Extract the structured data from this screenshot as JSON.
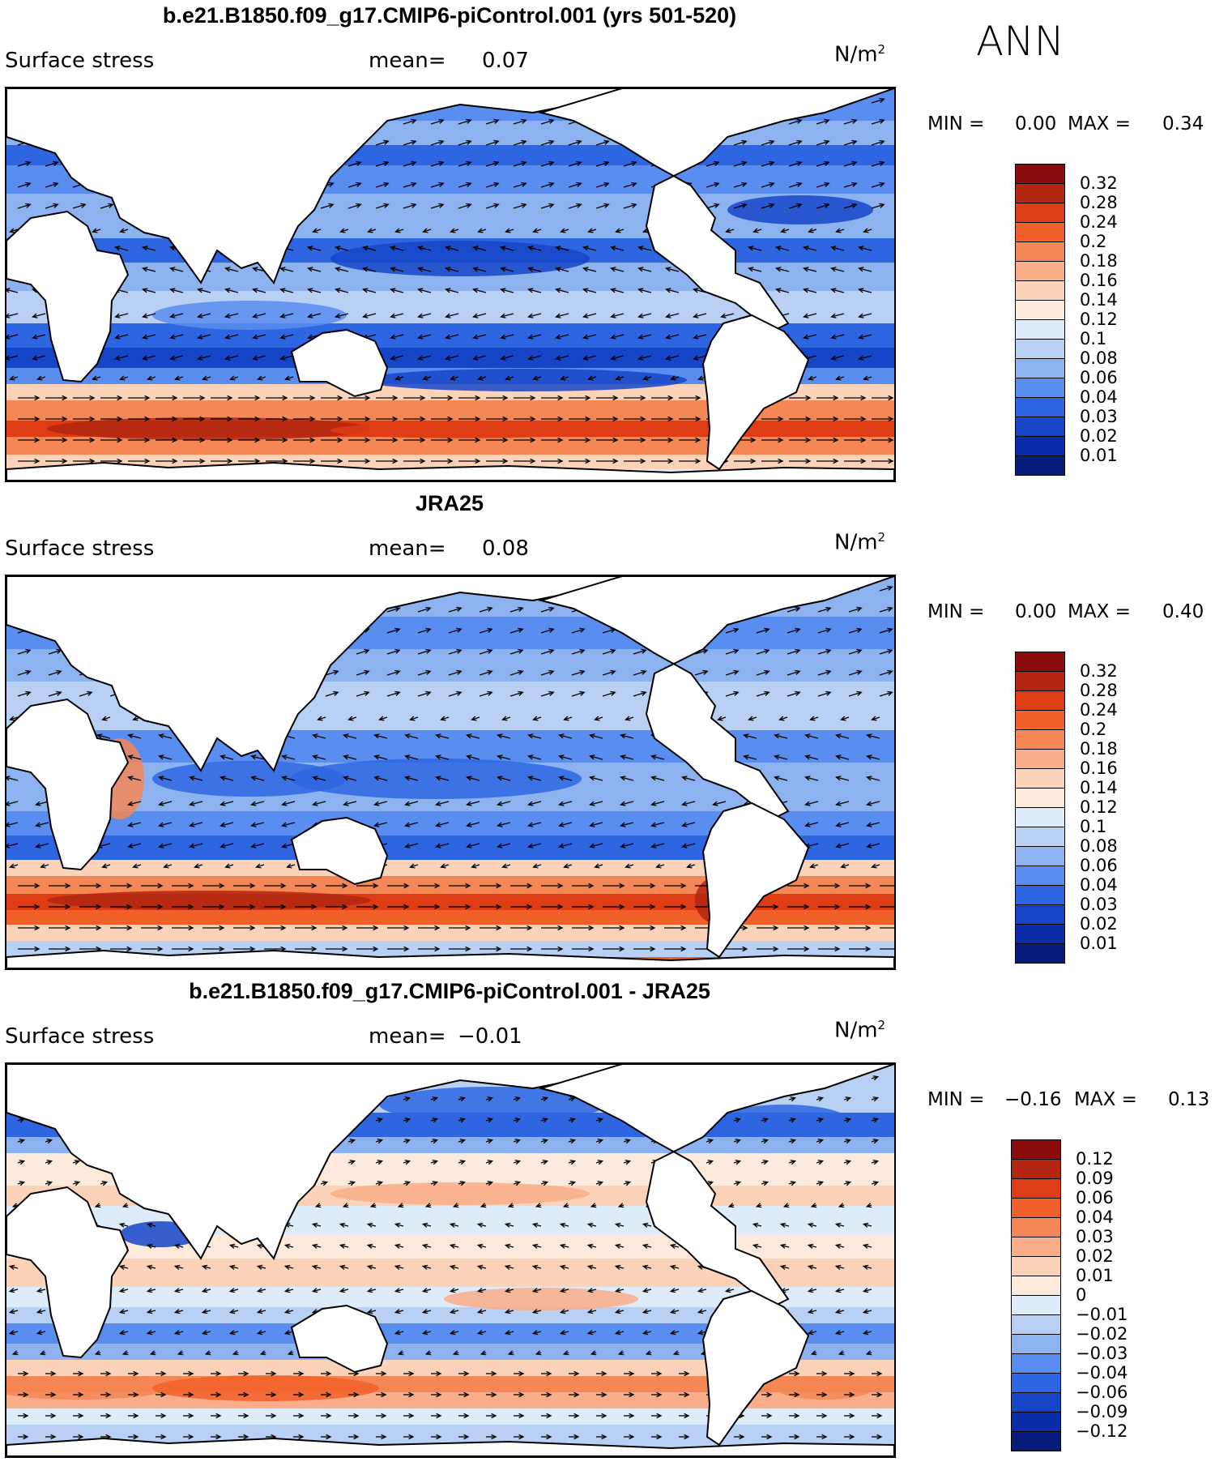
{
  "season": "ANN",
  "panels": [
    {
      "title": "b.e21.B1850.f09_g17.CMIP6-piControl.001 (yrs 501-520)",
      "variable": "Surface stress",
      "mean_label": "mean=",
      "mean_value": "0.07",
      "units": "N/m",
      "units_sup": "2",
      "min_label": "MIN =",
      "min_value": "0.00",
      "max_label": "MAX =",
      "max_value": "0.34",
      "colorbar_labels": [
        "0.32",
        "0.28",
        "0.24",
        "0.2",
        "0.18",
        "0.16",
        "0.14",
        "0.12",
        "0.1",
        "0.08",
        "0.06",
        "0.04",
        "0.03",
        "0.02",
        "0.01"
      ],
      "colorbar_colors": [
        "#8a0c0c",
        "#b22612",
        "#dd3c14",
        "#f2602a",
        "#f58655",
        "#f9ad88",
        "#fcd3b8",
        "#fdeadd",
        "#deebf9",
        "#b7d0f4",
        "#8cb2ef",
        "#5a8df0",
        "#2e66e2",
        "#1645c8",
        "#0a2ca6",
        "#071c7a"
      ]
    },
    {
      "title": "JRA25",
      "variable": "Surface stress",
      "mean_label": "mean=",
      "mean_value": "0.08",
      "units": "N/m",
      "units_sup": "2",
      "min_label": "MIN =",
      "min_value": "0.00",
      "max_label": "MAX =",
      "max_value": "0.40",
      "colorbar_labels": [
        "0.32",
        "0.28",
        "0.24",
        "0.2",
        "0.18",
        "0.16",
        "0.14",
        "0.12",
        "0.1",
        "0.08",
        "0.06",
        "0.04",
        "0.03",
        "0.02",
        "0.01"
      ],
      "colorbar_colors": [
        "#8a0c0c",
        "#b22612",
        "#dd3c14",
        "#f2602a",
        "#f58655",
        "#f9ad88",
        "#fcd3b8",
        "#fdeadd",
        "#deebf9",
        "#b7d0f4",
        "#8cb2ef",
        "#5a8df0",
        "#2e66e2",
        "#1645c8",
        "#0a2ca6",
        "#071c7a"
      ]
    },
    {
      "title": "b.e21.B1850.f09_g17.CMIP6-piControl.001 - JRA25",
      "variable": "Surface stress",
      "mean_label": "mean=",
      "mean_value": "−0.01",
      "units": "N/m",
      "units_sup": "2",
      "min_label": "MIN =",
      "min_value": "−0.16",
      "max_label": "MAX =",
      "max_value": "0.13",
      "colorbar_labels": [
        "0.12",
        "0.09",
        "0.06",
        "0.04",
        "0.03",
        "0.02",
        "0.01",
        "0",
        "−0.01",
        "−0.02",
        "−0.03",
        "−0.04",
        "−0.06",
        "−0.09",
        "−0.12"
      ],
      "colorbar_colors": [
        "#8a0c0c",
        "#b22612",
        "#dd3c14",
        "#f2602a",
        "#f58655",
        "#f9ad88",
        "#fcd3b8",
        "#fdeadd",
        "#deebf9",
        "#b7d0f4",
        "#8cb2ef",
        "#5a8df0",
        "#2e66e2",
        "#1645c8",
        "#0a2ca6",
        "#071c7a"
      ]
    }
  ]
}
